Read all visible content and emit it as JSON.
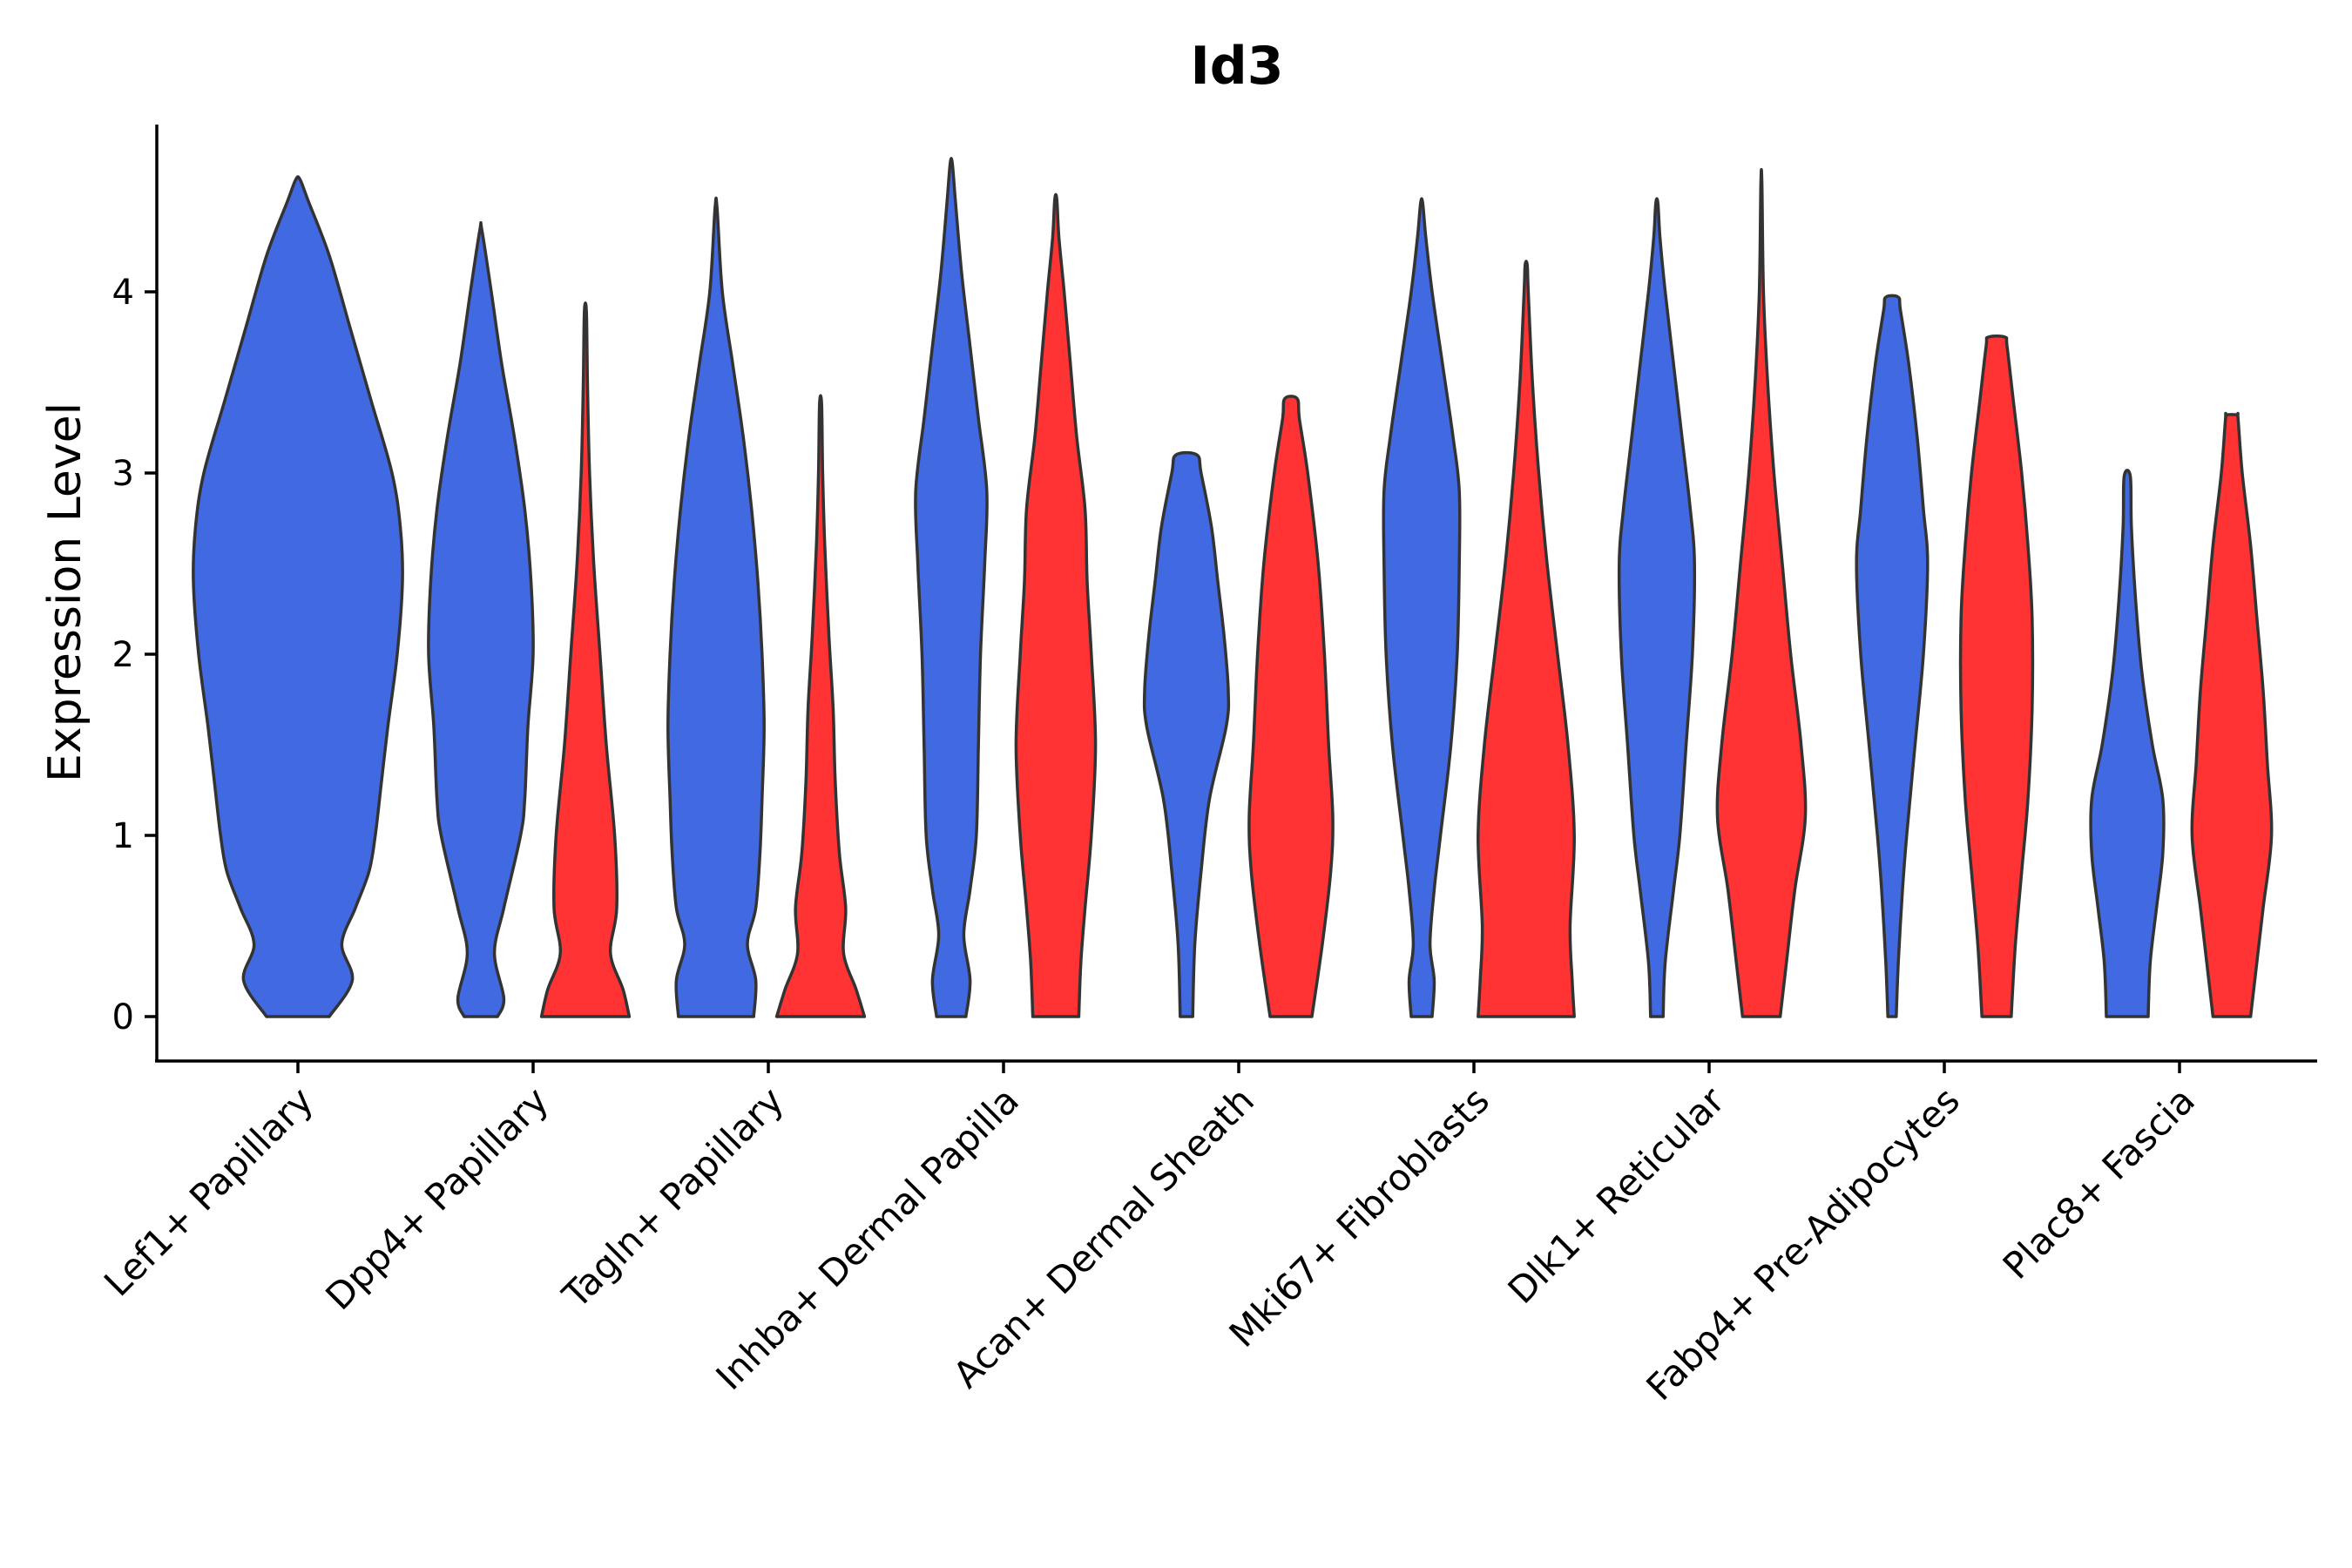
{
  "chart_data": {
    "type": "violin",
    "title": "Id3",
    "xlabel": "",
    "ylabel": "Expression Level",
    "ylim": [
      -0.23,
      4.93
    ],
    "yticks": [
      0,
      1,
      2,
      3,
      4
    ],
    "grid": false,
    "legend": "none",
    "colors": {
      "group_a": "#4169E1",
      "group_b": "#FF3333",
      "outline": "#333333"
    },
    "categories": [
      "Lef1+ Papillary",
      "Dpp4+ Papillary",
      "Tagln+ Papillary",
      "Inhba+ Dermal Papilla",
      "Acan+ Dermal Sheath",
      "Mki67+ Fibroblasts",
      "Dlk1+ Reticular",
      "Fabp4+ Pre-Adipocytes",
      "Plac8+ Fascia"
    ],
    "violins": [
      {
        "category": "Lef1+ Papillary",
        "group": "a",
        "max": 4.62,
        "profile": [
          [
            0,
            0.3
          ],
          [
            0.2,
            0.52
          ],
          [
            0.4,
            0.42
          ],
          [
            0.6,
            0.55
          ],
          [
            0.8,
            0.68
          ],
          [
            1.0,
            0.74
          ],
          [
            1.3,
            0.8
          ],
          [
            1.6,
            0.86
          ],
          [
            2.0,
            0.95
          ],
          [
            2.4,
            1.0
          ],
          [
            2.7,
            0.98
          ],
          [
            3.0,
            0.9
          ],
          [
            3.4,
            0.7
          ],
          [
            3.8,
            0.5
          ],
          [
            4.2,
            0.3
          ],
          [
            4.5,
            0.1
          ],
          [
            4.62,
            0.02
          ]
        ]
      },
      {
        "category": "Dpp4+ Papillary",
        "group": "a",
        "max": 4.34,
        "profile": [
          [
            0,
            0.16
          ],
          [
            0.1,
            0.22
          ],
          [
            0.35,
            0.13
          ],
          [
            0.6,
            0.22
          ],
          [
            1.0,
            0.38
          ],
          [
            1.2,
            0.42
          ],
          [
            1.6,
            0.45
          ],
          [
            2.0,
            0.5
          ],
          [
            2.4,
            0.48
          ],
          [
            2.8,
            0.42
          ],
          [
            3.2,
            0.32
          ],
          [
            3.6,
            0.2
          ],
          [
            4.0,
            0.1
          ],
          [
            4.34,
            0.01
          ]
        ]
      },
      {
        "category": "Dpp4+ Papillary",
        "group": "b",
        "max": 3.89,
        "profile": [
          [
            0,
            0.42
          ],
          [
            0.15,
            0.36
          ],
          [
            0.35,
            0.24
          ],
          [
            0.6,
            0.3
          ],
          [
            1.0,
            0.28
          ],
          [
            1.5,
            0.2
          ],
          [
            2.0,
            0.14
          ],
          [
            2.5,
            0.08
          ],
          [
            3.0,
            0.04
          ],
          [
            3.5,
            0.02
          ],
          [
            3.89,
            0.01
          ]
        ]
      },
      {
        "category": "Tagln+ Papillary",
        "group": "a",
        "max": 4.46,
        "profile": [
          [
            0,
            0.36
          ],
          [
            0.2,
            0.38
          ],
          [
            0.4,
            0.3
          ],
          [
            0.6,
            0.38
          ],
          [
            0.9,
            0.42
          ],
          [
            1.2,
            0.44
          ],
          [
            1.6,
            0.46
          ],
          [
            2.0,
            0.44
          ],
          [
            2.4,
            0.4
          ],
          [
            2.8,
            0.34
          ],
          [
            3.2,
            0.26
          ],
          [
            3.6,
            0.16
          ],
          [
            4.0,
            0.06
          ],
          [
            4.46,
            0.01
          ]
        ]
      },
      {
        "category": "Tagln+ Papillary",
        "group": "b",
        "max": 3.38,
        "profile": [
          [
            0,
            0.42
          ],
          [
            0.15,
            0.34
          ],
          [
            0.35,
            0.22
          ],
          [
            0.6,
            0.24
          ],
          [
            0.9,
            0.18
          ],
          [
            1.3,
            0.14
          ],
          [
            1.7,
            0.12
          ],
          [
            2.1,
            0.08
          ],
          [
            2.6,
            0.04
          ],
          [
            3.0,
            0.02
          ],
          [
            3.38,
            0.01
          ]
        ]
      },
      {
        "category": "Inhba+ Dermal Papilla",
        "group": "a",
        "max": 4.71,
        "profile": [
          [
            0,
            0.14
          ],
          [
            0.2,
            0.18
          ],
          [
            0.45,
            0.12
          ],
          [
            0.7,
            0.18
          ],
          [
            1.0,
            0.24
          ],
          [
            1.5,
            0.26
          ],
          [
            2.0,
            0.28
          ],
          [
            2.5,
            0.32
          ],
          [
            2.9,
            0.34
          ],
          [
            3.3,
            0.26
          ],
          [
            3.7,
            0.18
          ],
          [
            4.1,
            0.1
          ],
          [
            4.5,
            0.04
          ],
          [
            4.71,
            0.01
          ]
        ]
      },
      {
        "category": "Inhba+ Dermal Papilla",
        "group": "b",
        "max": 4.51,
        "profile": [
          [
            0,
            0.22
          ],
          [
            0.3,
            0.24
          ],
          [
            0.6,
            0.28
          ],
          [
            1.0,
            0.34
          ],
          [
            1.5,
            0.38
          ],
          [
            2.0,
            0.34
          ],
          [
            2.4,
            0.3
          ],
          [
            2.8,
            0.28
          ],
          [
            3.2,
            0.2
          ],
          [
            3.6,
            0.14
          ],
          [
            4.0,
            0.08
          ],
          [
            4.3,
            0.03
          ],
          [
            4.51,
            0.01
          ]
        ]
      },
      {
        "category": "Acan+ Dermal Sheath",
        "group": "a",
        "max": 3.1,
        "profile": [
          [
            0,
            0.06
          ],
          [
            0.4,
            0.08
          ],
          [
            0.8,
            0.14
          ],
          [
            1.2,
            0.22
          ],
          [
            1.6,
            0.38
          ],
          [
            1.8,
            0.4
          ],
          [
            2.1,
            0.36
          ],
          [
            2.4,
            0.3
          ],
          [
            2.7,
            0.24
          ],
          [
            3.0,
            0.14
          ],
          [
            3.1,
            0.1
          ]
        ]
      },
      {
        "category": "Acan+ Dermal Sheath",
        "group": "b",
        "max": 3.41,
        "profile": [
          [
            0,
            0.2
          ],
          [
            0.4,
            0.3
          ],
          [
            0.8,
            0.38
          ],
          [
            1.1,
            0.4
          ],
          [
            1.5,
            0.36
          ],
          [
            2.0,
            0.32
          ],
          [
            2.5,
            0.26
          ],
          [
            3.0,
            0.16
          ],
          [
            3.3,
            0.08
          ],
          [
            3.41,
            0.06
          ]
        ]
      },
      {
        "category": "Mki67+ Fibroblasts",
        "group": "a",
        "max": 4.49,
        "profile": [
          [
            0,
            0.1
          ],
          [
            0.2,
            0.12
          ],
          [
            0.4,
            0.08
          ],
          [
            0.7,
            0.12
          ],
          [
            1.0,
            0.18
          ],
          [
            1.5,
            0.28
          ],
          [
            2.0,
            0.34
          ],
          [
            2.5,
            0.36
          ],
          [
            2.9,
            0.36
          ],
          [
            3.2,
            0.3
          ],
          [
            3.6,
            0.2
          ],
          [
            4.0,
            0.1
          ],
          [
            4.3,
            0.04
          ],
          [
            4.49,
            0.01
          ]
        ]
      },
      {
        "category": "Mki67+ Fibroblasts",
        "group": "b",
        "max": 4.15,
        "profile": [
          [
            0,
            0.46
          ],
          [
            0.2,
            0.44
          ],
          [
            0.5,
            0.42
          ],
          [
            1.0,
            0.46
          ],
          [
            1.5,
            0.4
          ],
          [
            2.0,
            0.3
          ],
          [
            2.5,
            0.2
          ],
          [
            3.0,
            0.12
          ],
          [
            3.5,
            0.06
          ],
          [
            4.0,
            0.02
          ],
          [
            4.15,
            0.01
          ]
        ]
      },
      {
        "category": "Dlk1+ Reticular",
        "group": "a",
        "max": 4.49,
        "profile": [
          [
            0,
            0.06
          ],
          [
            0.3,
            0.08
          ],
          [
            0.7,
            0.16
          ],
          [
            1.0,
            0.22
          ],
          [
            1.5,
            0.28
          ],
          [
            2.0,
            0.34
          ],
          [
            2.5,
            0.36
          ],
          [
            2.8,
            0.32
          ],
          [
            3.2,
            0.24
          ],
          [
            3.6,
            0.16
          ],
          [
            4.0,
            0.08
          ],
          [
            4.3,
            0.03
          ],
          [
            4.49,
            0.01
          ]
        ]
      },
      {
        "category": "Dlk1+ Reticular",
        "group": "b",
        "max": 4.6,
        "profile": [
          [
            0,
            0.18
          ],
          [
            0.3,
            0.24
          ],
          [
            0.7,
            0.32
          ],
          [
            1.1,
            0.42
          ],
          [
            1.5,
            0.38
          ],
          [
            2.0,
            0.28
          ],
          [
            2.5,
            0.2
          ],
          [
            3.0,
            0.12
          ],
          [
            3.5,
            0.06
          ],
          [
            4.0,
            0.02
          ],
          [
            4.6,
            0.005
          ]
        ]
      },
      {
        "category": "Fabp4+ Pre-Adipocytes",
        "group": "a",
        "max": 3.97,
        "profile": [
          [
            0,
            0.04
          ],
          [
            0.3,
            0.06
          ],
          [
            0.7,
            0.1
          ],
          [
            1.0,
            0.14
          ],
          [
            1.5,
            0.22
          ],
          [
            2.0,
            0.3
          ],
          [
            2.5,
            0.34
          ],
          [
            2.8,
            0.3
          ],
          [
            3.2,
            0.24
          ],
          [
            3.6,
            0.16
          ],
          [
            3.9,
            0.08
          ],
          [
            3.97,
            0.06
          ]
        ]
      },
      {
        "category": "Fabp4+ Pre-Adipocytes",
        "group": "b",
        "max": 3.75,
        "profile": [
          [
            0,
            0.14
          ],
          [
            0.4,
            0.18
          ],
          [
            0.8,
            0.24
          ],
          [
            1.2,
            0.3
          ],
          [
            1.7,
            0.34
          ],
          [
            2.2,
            0.34
          ],
          [
            2.6,
            0.3
          ],
          [
            3.0,
            0.24
          ],
          [
            3.4,
            0.16
          ],
          [
            3.7,
            0.1
          ],
          [
            3.75,
            0.08
          ]
        ]
      },
      {
        "category": "Plac8+ Fascia",
        "group": "a",
        "max": 2.98,
        "profile": [
          [
            0,
            0.2
          ],
          [
            0.3,
            0.22
          ],
          [
            0.6,
            0.28
          ],
          [
            0.9,
            0.34
          ],
          [
            1.2,
            0.34
          ],
          [
            1.5,
            0.24
          ],
          [
            1.9,
            0.14
          ],
          [
            2.3,
            0.08
          ],
          [
            2.7,
            0.04
          ],
          [
            2.98,
            0.03
          ]
        ]
      },
      {
        "category": "Plac8+ Fascia",
        "group": "b",
        "max": 3.32,
        "profile": [
          [
            0,
            0.18
          ],
          [
            0.3,
            0.24
          ],
          [
            0.6,
            0.3
          ],
          [
            1.0,
            0.38
          ],
          [
            1.4,
            0.34
          ],
          [
            1.8,
            0.3
          ],
          [
            2.2,
            0.24
          ],
          [
            2.6,
            0.18
          ],
          [
            3.0,
            0.1
          ],
          [
            3.3,
            0.06
          ],
          [
            3.32,
            0.05
          ]
        ]
      }
    ]
  }
}
